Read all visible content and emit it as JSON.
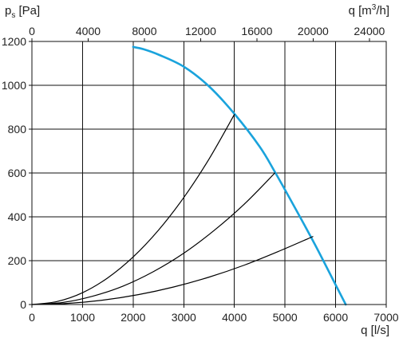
{
  "chart_data": {
    "type": "line",
    "title": "",
    "ylabel": {
      "main": "p",
      "sub": "s",
      "unit": " [Pa]"
    },
    "xlabel": "q [l/s]",
    "x2label": {
      "main": "q [m",
      "sup": "3",
      "rest": "/h]"
    },
    "xlim": [
      0,
      7000
    ],
    "ylim": [
      0,
      1200
    ],
    "x2lim": [
      0,
      25200
    ],
    "x_ticks": [
      0,
      1000,
      2000,
      3000,
      4000,
      5000,
      6000,
      7000
    ],
    "x_tick_labels": [
      "0",
      "1000",
      "2000",
      "3000",
      "4000",
      "5000",
      "6000",
      "7000"
    ],
    "y_ticks": [
      0,
      200,
      400,
      600,
      800,
      1000,
      1200
    ],
    "y_tick_labels": [
      "0",
      "200",
      "400",
      "600",
      "800",
      "1000",
      "1200"
    ],
    "x2_ticks": [
      0,
      4000,
      8000,
      12000,
      16000,
      20000,
      24000
    ],
    "x2_tick_labels": [
      "0",
      "4000",
      "8000",
      "12000",
      "16000",
      "20000",
      "24000"
    ],
    "grid": true,
    "series": [
      {
        "kind": "fan-curve",
        "color": "#1aa3dc",
        "x": [
          2000,
          2200,
          2500,
          3000,
          3500,
          4000,
          4500,
          4800,
          5200,
          5600,
          6000,
          6200
        ],
        "y": [
          1175,
          1165,
          1140,
          1085,
          995,
          870,
          720,
          605,
          440,
          270,
          90,
          0
        ]
      },
      {
        "kind": "system-curve",
        "color": "#000000",
        "x": [
          0,
          500,
          1000,
          1500,
          2000,
          2500,
          3000,
          3500,
          4000
        ],
        "y": [
          0,
          14,
          54,
          122,
          217,
          339,
          488,
          664,
          867
        ]
      },
      {
        "kind": "system-curve",
        "color": "#000000",
        "x": [
          0,
          600,
          1200,
          1800,
          2400,
          3000,
          3600,
          4200,
          4800
        ],
        "y": [
          0,
          9,
          38,
          84,
          150,
          234,
          338,
          459,
          600
        ]
      },
      {
        "kind": "system-curve",
        "color": "#000000",
        "x": [
          0,
          700,
          1400,
          2100,
          2800,
          3500,
          4200,
          4900,
          5550
        ],
        "y": [
          0,
          5,
          20,
          45,
          80,
          125,
          180,
          245,
          310
        ]
      }
    ]
  }
}
